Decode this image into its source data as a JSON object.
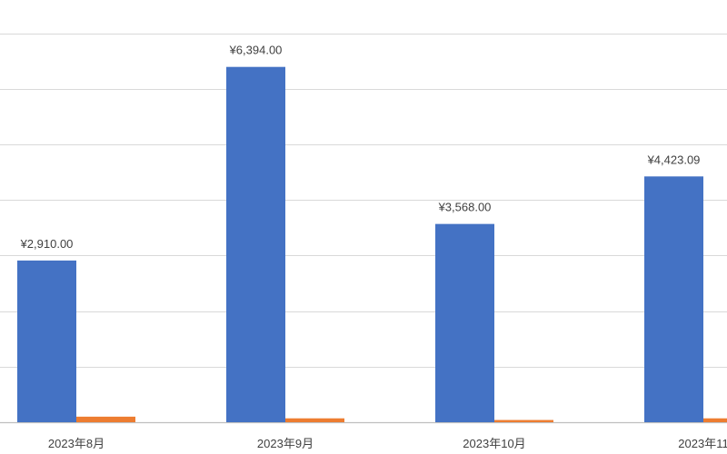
{
  "chart_data": {
    "type": "bar",
    "title": "",
    "xlabel": "",
    "ylabel": "",
    "categories": [
      "2023年8月",
      "2023年9月",
      "2023年10月",
      "2023年11"
    ],
    "series": [
      {
        "name": "series-1",
        "color": "#4472c4",
        "values": [
          2910.0,
          6394.0,
          3568.0,
          4423.09
        ],
        "labels": [
          "¥2,910.00",
          "¥6,394.00",
          "¥3,568.00",
          "¥4,423.09"
        ]
      },
      {
        "name": "series-2",
        "color": "#ed7d31",
        "values": [
          100,
          70,
          40,
          70
        ]
      }
    ],
    "ylim": [
      0,
      7000
    ],
    "ytick_step": 1000,
    "grid": true,
    "legend": "none"
  }
}
